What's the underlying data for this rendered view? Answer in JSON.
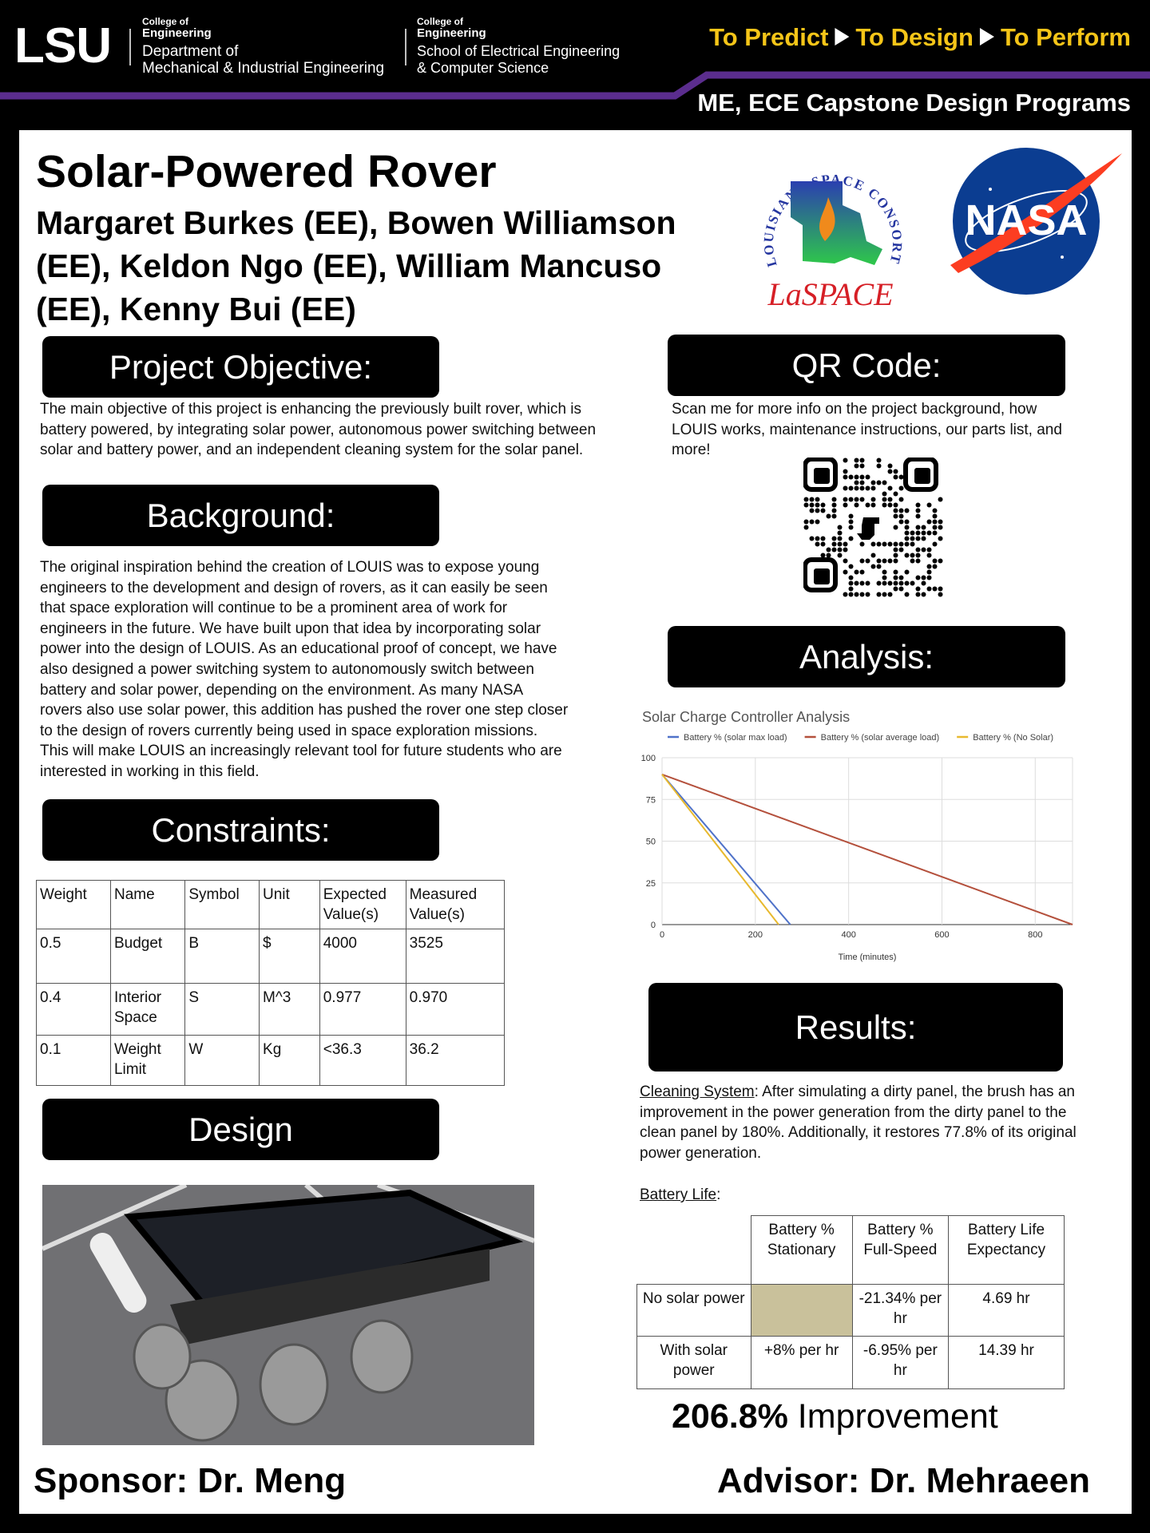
{
  "header": {
    "logo": "LSU",
    "units": [
      {
        "college": "College of",
        "school": "Engineering",
        "dept": [
          "Department of",
          "Mechanical & Industrial Engineering"
        ]
      },
      {
        "college": "College of",
        "school": "Engineering",
        "dept": [
          "School of Electrical Engineering",
          "& Computer Science"
        ]
      }
    ],
    "tagline": [
      "To Predict",
      "To Design",
      "To Perform"
    ],
    "programs": "ME, ECE Capstone Design Programs"
  },
  "title": "Solar-Powered Rover",
  "authors": "Margaret Burkes (EE), Bowen Williamson (EE), Keldon Ngo (EE), William Mancuso (EE), Kenny Bui (EE)",
  "logos": {
    "laspace_ring": "LOUISIANA SPACE CONSORTIUM",
    "laspace": "LaSPACE",
    "nasa": "NASA"
  },
  "sections": {
    "objective": {
      "heading": "Project Objective:",
      "text": "The main objective of this project is enhancing the previously built rover, which is battery powered, by integrating solar power, autonomous power switching between solar and battery power, and an independent cleaning system for the solar panel."
    },
    "background": {
      "heading": "Background:",
      "text": "The original inspiration behind the creation of LOUIS was to expose young engineers to the development and design of rovers, as it can easily be seen that space exploration will continue to be a prominent area of work for engineers in the future. We have built upon that idea by incorporating solar power into the design of LOUIS. As an educational proof of concept, we have also designed a power switching system to autonomously switch between battery and solar power, depending on the environment. As many NASA rovers also use solar power, this addition has pushed the rover one step closer to the design of rovers currently being used in space exploration missions. This will make LOUIS an increasingly relevant tool for future students who are interested in working in this field."
    },
    "constraints": {
      "heading": "Constraints:",
      "table": {
        "header": [
          "Weight",
          "Name",
          "Symbol",
          "Unit",
          "Expected Value(s)",
          "Measured Value(s)"
        ],
        "rows": [
          [
            "0.5",
            "Budget",
            "B",
            "$",
            "4000",
            "3525"
          ],
          [
            "0.4",
            "Interior Space",
            "S",
            "M^3",
            "0.977",
            "0.970"
          ],
          [
            "0.1",
            "Weight Limit",
            "W",
            "Kg",
            "<36.3",
            "36.2"
          ]
        ]
      }
    },
    "design": {
      "heading": "Design"
    },
    "qr": {
      "heading": "QR Code:",
      "text": "Scan me for more info on the project background, how LOUIS works, maintenance instructions, our parts list, and more!"
    },
    "analysis": {
      "heading": "Analysis:"
    },
    "results": {
      "heading": "Results:",
      "cleaning_label": "Cleaning System",
      "cleaning_text": ": After simulating a dirty panel, the brush has an improvement in the power generation from the dirty panel to the clean panel by 180%. Additionally, it restores 77.8% of its original power generation.",
      "battery_label": [
        "Battery Life",
        ":"
      ],
      "table": {
        "header": [
          "Battery % Stationary",
          "Battery % Full-Speed",
          "Battery Life Expectancy"
        ],
        "rows": [
          {
            "label": "No solar power",
            "full_speed": "-21.34% per hr",
            "life": "4.69 hr"
          },
          {
            "label": "With solar power",
            "stationary": "+8% per hr",
            "full_speed": "-6.95% per hr",
            "life": "14.39 hr"
          }
        ]
      },
      "improvement": {
        "value": "206.8%",
        "text": "Improvement"
      }
    }
  },
  "chart_data": {
    "type": "line",
    "title": "Solar Charge Controller Analysis",
    "x_label": "Time (minutes)",
    "series": [
      {
        "name": "Battery % (solar max load)",
        "color": "#4f72c9",
        "x": [
          0,
          275
        ],
        "values": [
          90,
          0
        ]
      },
      {
        "name": "Battery % (solar average load)",
        "color": "#b4503c",
        "x": [
          0,
          880
        ],
        "values": [
          90,
          0
        ]
      },
      {
        "name": "Battery % (No Solar)",
        "color": "#e8b92e",
        "x": [
          0,
          250
        ],
        "values": [
          90,
          0
        ]
      }
    ],
    "xlim": [
      0,
      880
    ],
    "ylim": [
      0,
      100
    ],
    "xticks": [
      0,
      200,
      400,
      600,
      800
    ],
    "yticks": [
      0,
      25,
      50,
      75,
      100
    ],
    "grid": true,
    "legend": "top"
  },
  "footer": {
    "sponsor": "Sponsor: Dr. Meng",
    "advisor": "Advisor: Dr. Mehraeen"
  }
}
